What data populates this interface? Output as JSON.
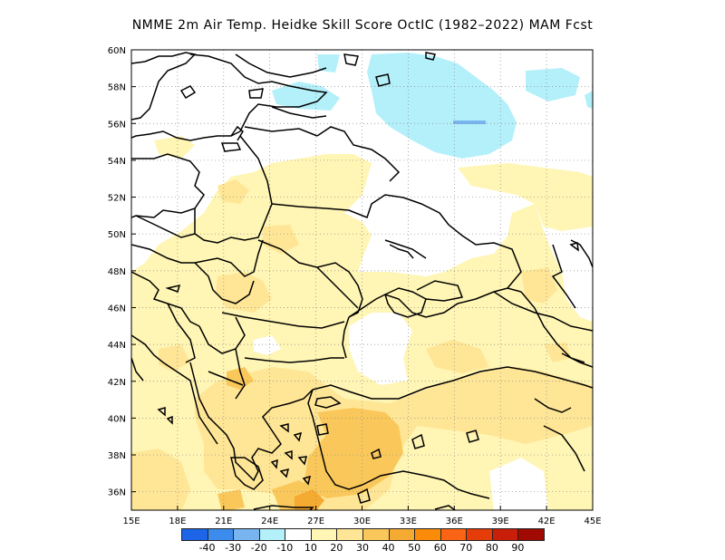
{
  "title": "NMME  2m Air Temp. Heidke Skill Score OctIC (1982–2022) MAM Fcst",
  "map": {
    "lon_range": [
      15,
      45
    ],
    "lat_range": [
      35,
      60
    ],
    "lon_ticks": [
      "15E",
      "18E",
      "21E",
      "24E",
      "27E",
      "30E",
      "33E",
      "36E",
      "39E",
      "42E",
      "45E"
    ],
    "lat_ticks": [
      "36N",
      "38N",
      "40N",
      "42N",
      "44N",
      "46N",
      "48N",
      "50N",
      "52N",
      "54N",
      "56N",
      "58N",
      "60N"
    ],
    "grid": "dotted"
  },
  "colorbar": {
    "colors": [
      "#1e64e6",
      "#3c8ced",
      "#78b4f0",
      "#b4f0fa",
      "#ffffff",
      "#fff5b4",
      "#ffe696",
      "#fac85a",
      "#f5aa32",
      "#fa8c0a",
      "#fa6414",
      "#e63c0a",
      "#c81e0a",
      "#a00a00"
    ],
    "labels": [
      "-40",
      "-30",
      "-20",
      "-10",
      "10",
      "20",
      "30",
      "40",
      "50",
      "60",
      "70",
      "80",
      "90"
    ]
  },
  "colors": {
    "light_yellow": "#fff5b4",
    "yellow": "#ffe696",
    "orange": "#fac85a",
    "dark_orange": "#f5aa32",
    "light_blue": "#b4f0fa",
    "blue": "#78b4f0"
  }
}
